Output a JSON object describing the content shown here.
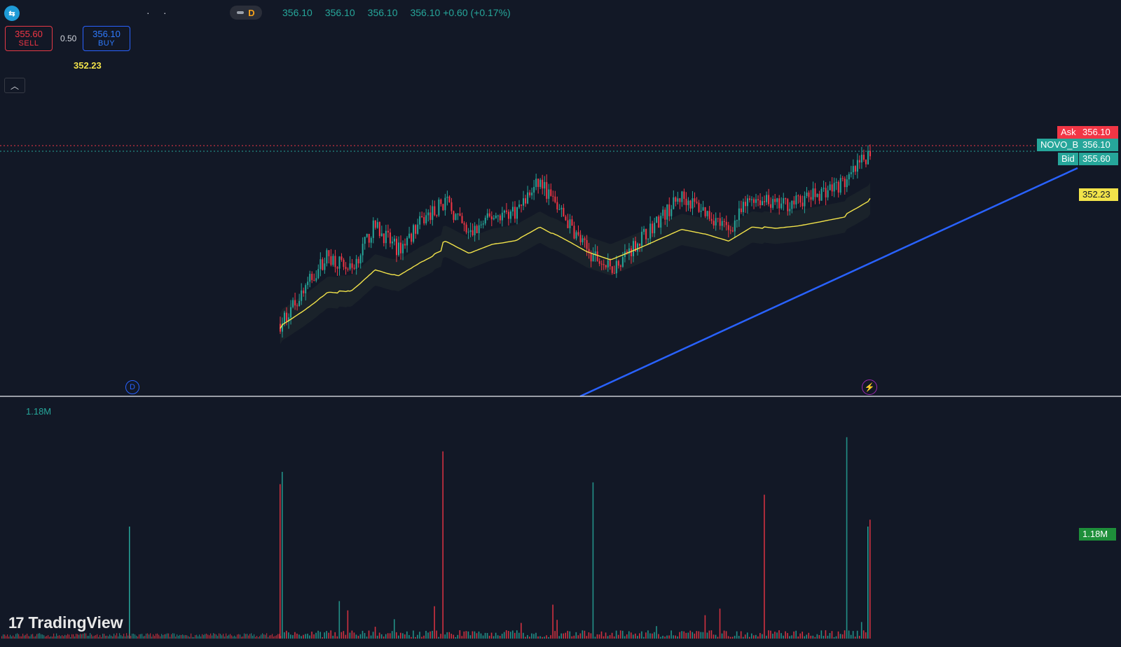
{
  "header": {
    "interval": "D",
    "ohlc": [
      "356.10",
      "356.10",
      "356.10",
      "356.10 +0.60 (+0.17%)"
    ]
  },
  "trade": {
    "sell_price": "355.60",
    "sell_label": "SELL",
    "spread": "0.50",
    "buy_price": "356.10",
    "buy_label": "BUY"
  },
  "indicator": {
    "vwap_value": "352.23"
  },
  "price_axis": {
    "ask_label": "Ask",
    "ask_value": "356.10",
    "symbol_label": "NOVO_B",
    "last_value": "356.10",
    "bid_label": "Bid",
    "bid_value": "355.60",
    "vwap_tag": "352.23"
  },
  "volume": {
    "legend_value": "1.18M",
    "axis_tag": "1.18M"
  },
  "badges": {
    "dividend": "D"
  },
  "branding": {
    "name": "TradingView"
  },
  "colors": {
    "background": "#121826",
    "up": "#26a69a",
    "down": "#f23645",
    "vwap": "#f2e34a",
    "trendline": "#2962ff"
  },
  "chart_data": {
    "type": "candlestick",
    "symbol": "NOVO_B",
    "last_price": 356.1,
    "ask": 356.1,
    "bid": 355.6,
    "vwap_last": 352.23,
    "volume_last": "1.18M",
    "price_series_approx": [
      338.5,
      342.0,
      345.5,
      344.0,
      348.5,
      346.0,
      349.0,
      351.0,
      347.5,
      349.5,
      350.0,
      353.0,
      349.5,
      346.0,
      344.0,
      346.5,
      349.0,
      351.5,
      350.0,
      348.0,
      351.5,
      350.5,
      351.0,
      352.0,
      353.0,
      356.1
    ]
  }
}
